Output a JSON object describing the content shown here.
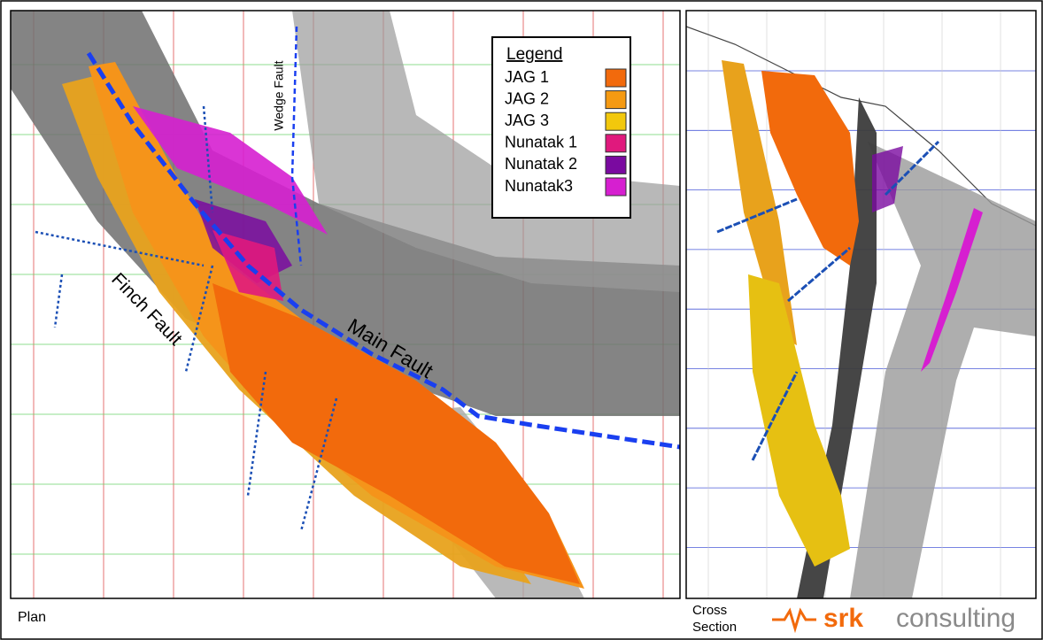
{
  "plan": {
    "label": "Plan",
    "faults": [
      "Finch Fault",
      "Main Fault",
      "Wedge Fault"
    ]
  },
  "legend": {
    "title": "Legend",
    "items": [
      {
        "label": "JAG 1",
        "color": "#f26a0c"
      },
      {
        "label": "JAG 2",
        "color": "#f59a12"
      },
      {
        "label": "JAG 3",
        "color": "#f2c80c"
      },
      {
        "label": "Nunatak 1",
        "color": "#e0197d"
      },
      {
        "label": "Nunatak 2",
        "color": "#7a0aa0"
      },
      {
        "label": "Nunatak3",
        "color": "#d61fd0"
      }
    ]
  },
  "cross_section": {
    "label": [
      "Cross",
      "Section"
    ]
  },
  "logo": {
    "brand": "srk",
    "text": "consulting"
  }
}
